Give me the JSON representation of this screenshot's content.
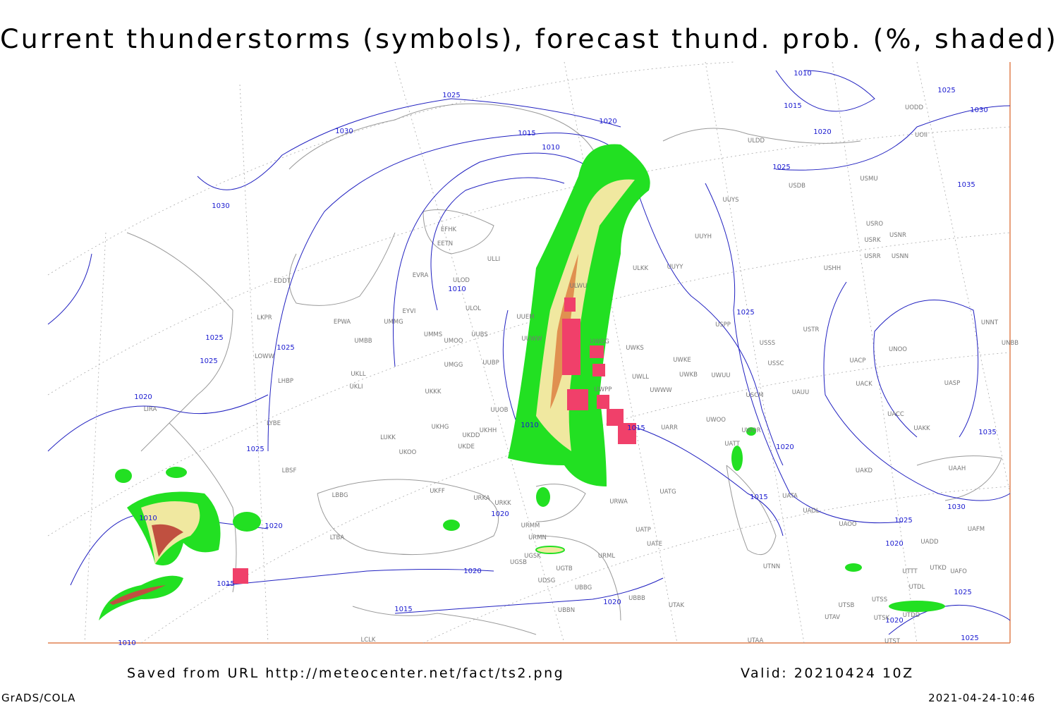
{
  "title": "Current thunderstorms (symbols), forecast thund. prob. (%, shaded)",
  "footer": {
    "saved": "Saved from URL http://meteocenter.net/fact/ts2.png",
    "valid": "Valid: 20210424 10Z",
    "software": "GrADS/COLA",
    "timestamp": "2021-04-24-10:46"
  },
  "isobar_labels": [
    "1025",
    "1030",
    "1030",
    "1015",
    "1010",
    "1020",
    "1010",
    "1015",
    "1020",
    "1025",
    "1030",
    "1025",
    "1035",
    "1010",
    "1025",
    "1025",
    "1025",
    "1025",
    "1020",
    "1025",
    "1010",
    "1015",
    "1020",
    "1035",
    "1030",
    "1015",
    "1025",
    "1010",
    "1020",
    "1020",
    "1020",
    "1015",
    "1020",
    "1015",
    "1025",
    "1020",
    "1020",
    "1025",
    "1010"
  ],
  "stations": [
    "EFHK",
    "EETN",
    "EVRA",
    "ULOD",
    "ULOL",
    "EYVI",
    "EPWA",
    "UMMG",
    "UMMS",
    "UMOO",
    "UUBS",
    "UMBB",
    "UMGG",
    "UUBP",
    "UKLL",
    "UKLI",
    "UKKK",
    "UUOB",
    "LUKK",
    "UKHH",
    "UKHG",
    "UKDD",
    "UKDE",
    "UKOO",
    "LKPR",
    "LOWW",
    "EDDT",
    "LHBP",
    "LIRA",
    "LYBE",
    "LBSF",
    "LBBG",
    "UKFF",
    "URKA",
    "URKK",
    "URMM",
    "URMN",
    "UGSB",
    "UGSK",
    "UGTB",
    "UDSG",
    "UBBG",
    "UBBB",
    "UBBN",
    "UTAK",
    "UATE",
    "UATP",
    "UATG",
    "URWA",
    "URML",
    "ULLI",
    "UUEM",
    "UUWW",
    "ULWU",
    "UUYY",
    "ULKK",
    "UUYH",
    "UUYS",
    "UWKS",
    "UWKE",
    "UWKB",
    "UWUU",
    "UWLL",
    "UWWW",
    "UWGG",
    "UWPP",
    "UARR",
    "UWOO",
    "UWOR",
    "UATT",
    "UATA",
    "UAOL",
    "UAOO",
    "UAKD",
    "UACC",
    "UAKK",
    "UAAH",
    "UAFM",
    "UADD",
    "UAFO",
    "UTKD",
    "UTTT",
    "UTDL",
    "UTSS",
    "UTSB",
    "UTAV",
    "UTSK",
    "UTDD",
    "UTST",
    "UTAA",
    "UTNN",
    "UNOO",
    "UNBB",
    "UNNT",
    "UASP",
    "UACK",
    "UACP",
    "UAUU",
    "USCM",
    "USSC",
    "USSS",
    "USTR",
    "USPP",
    "USHH",
    "USRR",
    "USNN",
    "USRK",
    "USNR",
    "USRO",
    "USMU",
    "USDB",
    "ULDD",
    "UODD",
    "UOII",
    "LCLK",
    "LTBA"
  ]
}
